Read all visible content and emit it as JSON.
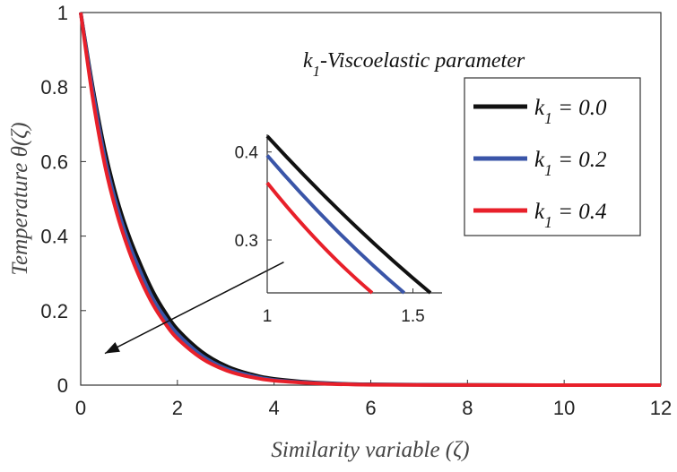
{
  "chart_data": {
    "type": "line",
    "title": "",
    "xlabel": "Similarity variable (ζ)",
    "ylabel": "Temperature θ(ζ)",
    "xlim": [
      0,
      12
    ],
    "ylim": [
      0,
      1
    ],
    "xticks": [
      "0",
      "2",
      "4",
      "6",
      "8",
      "10",
      "12"
    ],
    "yticks": [
      "0",
      "0.2",
      "0.4",
      "0.6",
      "0.8",
      "1"
    ],
    "annotation": "k1-Viscoelastic parameter",
    "legend_position": "top-right",
    "series": [
      {
        "name": "k1 = 0.0",
        "color": "#111111",
        "x": [
          0,
          0.25,
          0.5,
          0.75,
          1,
          1.25,
          1.5,
          1.75,
          2,
          2.5,
          3,
          3.5,
          4,
          5,
          6,
          8,
          10,
          12
        ],
        "y": [
          1,
          0.8,
          0.63,
          0.5,
          0.4,
          0.32,
          0.25,
          0.195,
          0.15,
          0.09,
          0.052,
          0.03,
          0.017,
          0.006,
          0.002,
          0.0005,
          0.0001,
          0
        ]
      },
      {
        "name": "k1 = 0.2",
        "color": "#3a55a8",
        "x": [
          0,
          0.25,
          0.5,
          0.75,
          1,
          1.25,
          1.5,
          1.75,
          2,
          2.5,
          3,
          3.5,
          4,
          5,
          6,
          8,
          10,
          12
        ],
        "y": [
          1,
          0.79,
          0.61,
          0.48,
          0.38,
          0.3,
          0.23,
          0.18,
          0.138,
          0.08,
          0.045,
          0.026,
          0.014,
          0.005,
          0.0015,
          0.0004,
          0.0001,
          0
        ]
      },
      {
        "name": "k1 = 0.4",
        "color": "#e8202a",
        "x": [
          0,
          0.25,
          0.5,
          0.75,
          1,
          1.25,
          1.5,
          1.75,
          2,
          2.5,
          3,
          3.5,
          4,
          5,
          6,
          8,
          10,
          12
        ],
        "y": [
          1,
          0.77,
          0.59,
          0.46,
          0.36,
          0.28,
          0.215,
          0.165,
          0.125,
          0.072,
          0.04,
          0.022,
          0.012,
          0.004,
          0.001,
          0.0003,
          0.0001,
          0
        ]
      }
    ],
    "inset": {
      "xlim": [
        1,
        1.6
      ],
      "ylim": [
        0.24,
        0.42
      ],
      "xticks": [
        "1",
        "1.5"
      ],
      "yticks": [
        "0.3",
        "0.4"
      ],
      "series": [
        {
          "name": "k1 = 0.0",
          "x": [
            1,
            1.56
          ],
          "y": [
            0.418,
            0.24
          ]
        },
        {
          "name": "k1 = 0.2",
          "x": [
            1,
            1.47
          ],
          "y": [
            0.396,
            0.24
          ]
        },
        {
          "name": "k1 = 0.4",
          "x": [
            1,
            1.36
          ],
          "y": [
            0.365,
            0.24
          ]
        }
      ]
    },
    "arrow": {
      "from": [
        4.2,
        0.33
      ],
      "to": [
        0.5,
        0.085
      ]
    }
  }
}
